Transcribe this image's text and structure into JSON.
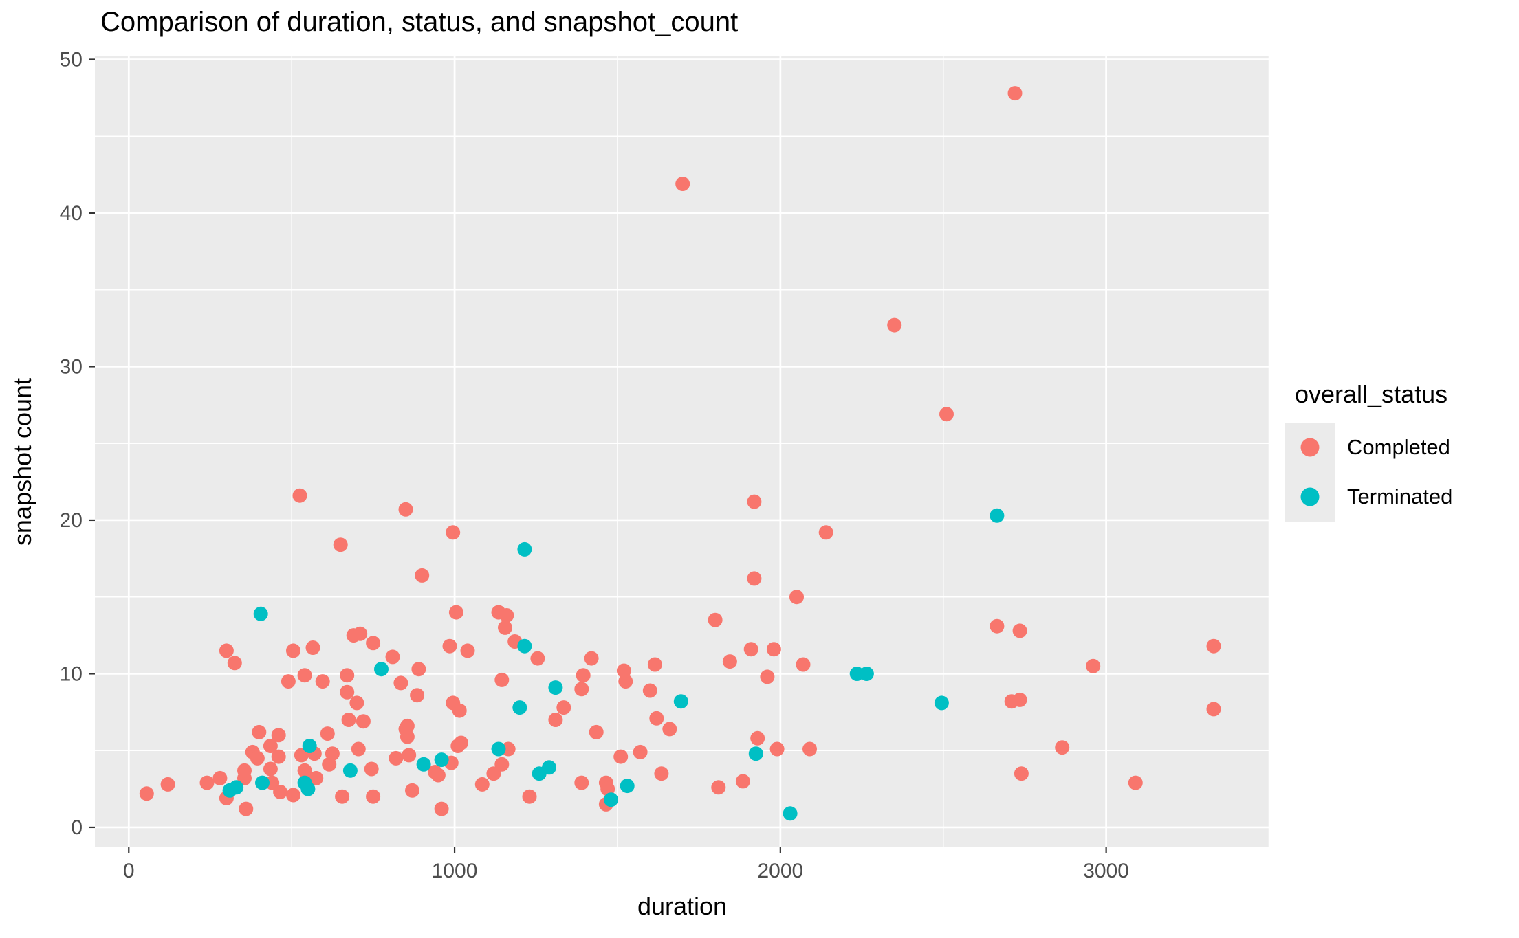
{
  "title": "Comparison of duration, status, and snapshot_count",
  "colors": {
    "panel_background": "#EBEBEB",
    "gridline": "#FFFFFF",
    "axis_text": "#4D4D4D",
    "tick_mark": "#333333",
    "completed": "#F8766D",
    "terminated": "#00BFC4"
  },
  "chart_data": {
    "type": "scatter",
    "title": "Comparison of duration, status, and snapshot_count",
    "xlabel": "duration",
    "ylabel": "snapshot count",
    "x_ticks": [
      0,
      1000,
      2000,
      3000
    ],
    "x_minor_ticks": [
      500,
      1500,
      2500,
      3500
    ],
    "y_ticks": [
      0,
      10,
      20,
      30,
      40,
      50
    ],
    "y_minor_ticks": [
      5,
      15,
      25,
      35,
      45
    ],
    "xlim": [
      -104,
      3501
    ],
    "ylim": [
      -1.3,
      50.2
    ],
    "grid": true,
    "legend": {
      "title": "overall_status",
      "position": "right",
      "entries": [
        {
          "label": "Completed",
          "color": "#F8766D"
        },
        {
          "label": "Terminated",
          "color": "#00BFC4"
        }
      ]
    },
    "series": [
      {
        "name": "Completed",
        "color": "#F8766D",
        "points": [
          [
            55,
            2.2
          ],
          [
            120,
            2.8
          ],
          [
            240,
            2.9
          ],
          [
            280,
            3.2
          ],
          [
            300,
            1.9
          ],
          [
            300,
            11.5
          ],
          [
            325,
            10.7
          ],
          [
            355,
            3.2
          ],
          [
            355,
            3.7
          ],
          [
            360,
            1.2
          ],
          [
            380,
            4.9
          ],
          [
            395,
            4.5
          ],
          [
            400,
            6.2
          ],
          [
            435,
            3.8
          ],
          [
            435,
            5.3
          ],
          [
            440,
            2.9
          ],
          [
            460,
            4.6
          ],
          [
            460,
            6.0
          ],
          [
            465,
            2.3
          ],
          [
            490,
            9.5
          ],
          [
            505,
            2.1
          ],
          [
            505,
            11.5
          ],
          [
            525,
            21.6
          ],
          [
            530,
            4.7
          ],
          [
            540,
            3.7
          ],
          [
            540,
            9.9
          ],
          [
            565,
            11.7
          ],
          [
            570,
            4.8
          ],
          [
            575,
            3.2
          ],
          [
            595,
            9.5
          ],
          [
            610,
            6.1
          ],
          [
            615,
            4.1
          ],
          [
            625,
            4.8
          ],
          [
            650,
            18.4
          ],
          [
            655,
            2.0
          ],
          [
            670,
            8.8
          ],
          [
            670,
            9.9
          ],
          [
            675,
            7.0
          ],
          [
            690,
            12.5
          ],
          [
            700,
            8.1
          ],
          [
            705,
            5.1
          ],
          [
            710,
            12.6
          ],
          [
            720,
            6.9
          ],
          [
            745,
            3.8
          ],
          [
            750,
            2.0
          ],
          [
            750,
            12.0
          ],
          [
            810,
            11.1
          ],
          [
            820,
            4.5
          ],
          [
            835,
            9.4
          ],
          [
            850,
            6.4
          ],
          [
            850,
            20.7
          ],
          [
            855,
            5.9
          ],
          [
            855,
            6.6
          ],
          [
            860,
            4.7
          ],
          [
            870,
            2.4
          ],
          [
            885,
            8.6
          ],
          [
            890,
            10.3
          ],
          [
            900,
            16.4
          ],
          [
            940,
            3.6
          ],
          [
            950,
            3.4
          ],
          [
            960,
            1.2
          ],
          [
            985,
            11.8
          ],
          [
            990,
            4.2
          ],
          [
            995,
            8.1
          ],
          [
            995,
            19.2
          ],
          [
            1005,
            14.0
          ],
          [
            1010,
            5.3
          ],
          [
            1015,
            7.6
          ],
          [
            1020,
            5.5
          ],
          [
            1040,
            11.5
          ],
          [
            1085,
            2.8
          ],
          [
            1120,
            3.5
          ],
          [
            1135,
            14.0
          ],
          [
            1145,
            4.1
          ],
          [
            1145,
            9.6
          ],
          [
            1155,
            13.0
          ],
          [
            1160,
            13.8
          ],
          [
            1165,
            5.1
          ],
          [
            1185,
            12.1
          ],
          [
            1230,
            2.0
          ],
          [
            1255,
            11.0
          ],
          [
            1310,
            7.0
          ],
          [
            1335,
            7.8
          ],
          [
            1390,
            2.9
          ],
          [
            1390,
            9.0
          ],
          [
            1395,
            9.9
          ],
          [
            1420,
            11.0
          ],
          [
            1435,
            6.2
          ],
          [
            1465,
            1.5
          ],
          [
            1465,
            2.9
          ],
          [
            1470,
            2.5
          ],
          [
            1510,
            4.6
          ],
          [
            1520,
            10.2
          ],
          [
            1525,
            9.5
          ],
          [
            1570,
            4.9
          ],
          [
            1600,
            8.9
          ],
          [
            1615,
            10.6
          ],
          [
            1620,
            7.1
          ],
          [
            1635,
            3.5
          ],
          [
            1660,
            6.4
          ],
          [
            1700,
            41.9
          ],
          [
            1800,
            13.5
          ],
          [
            1810,
            2.6
          ],
          [
            1845,
            10.8
          ],
          [
            1885,
            3.0
          ],
          [
            1910,
            11.6
          ],
          [
            1920,
            16.2
          ],
          [
            1920,
            21.2
          ],
          [
            1930,
            5.8
          ],
          [
            1960,
            9.8
          ],
          [
            1980,
            11.6
          ],
          [
            1990,
            5.1
          ],
          [
            2050,
            15.0
          ],
          [
            2070,
            10.6
          ],
          [
            2090,
            5.1
          ],
          [
            2140,
            19.2
          ],
          [
            2350,
            32.7
          ],
          [
            2510,
            26.9
          ],
          [
            2665,
            13.1
          ],
          [
            2710,
            8.2
          ],
          [
            2720,
            47.8
          ],
          [
            2735,
            8.3
          ],
          [
            2735,
            12.8
          ],
          [
            2740,
            3.5
          ],
          [
            2865,
            5.2
          ],
          [
            2960,
            10.5
          ],
          [
            3090,
            2.9
          ],
          [
            3330,
            7.7
          ],
          [
            3330,
            11.8
          ]
        ]
      },
      {
        "name": "Terminated",
        "color": "#00BFC4",
        "points": [
          [
            310,
            2.4
          ],
          [
            330,
            2.6
          ],
          [
            405,
            13.9
          ],
          [
            410,
            2.9
          ],
          [
            540,
            2.9
          ],
          [
            550,
            2.5
          ],
          [
            555,
            5.3
          ],
          [
            680,
            3.7
          ],
          [
            775,
            10.3
          ],
          [
            905,
            4.1
          ],
          [
            960,
            4.4
          ],
          [
            1135,
            5.1
          ],
          [
            1200,
            7.8
          ],
          [
            1215,
            11.8
          ],
          [
            1215,
            18.1
          ],
          [
            1260,
            3.5
          ],
          [
            1290,
            3.9
          ],
          [
            1310,
            9.1
          ],
          [
            1480,
            1.8
          ],
          [
            1530,
            2.7
          ],
          [
            1695,
            8.2
          ],
          [
            1925,
            4.8
          ],
          [
            2030,
            0.9
          ],
          [
            2235,
            10.0
          ],
          [
            2265,
            10.0
          ],
          [
            2495,
            8.1
          ],
          [
            2665,
            20.3
          ]
        ]
      }
    ]
  }
}
